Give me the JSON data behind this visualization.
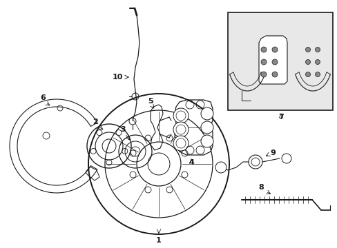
{
  "background_color": "#ffffff",
  "line_color": "#1a1a1a",
  "box_fill": "#e8e8e8",
  "figsize": [
    4.89,
    3.6
  ],
  "dpi": 100
}
